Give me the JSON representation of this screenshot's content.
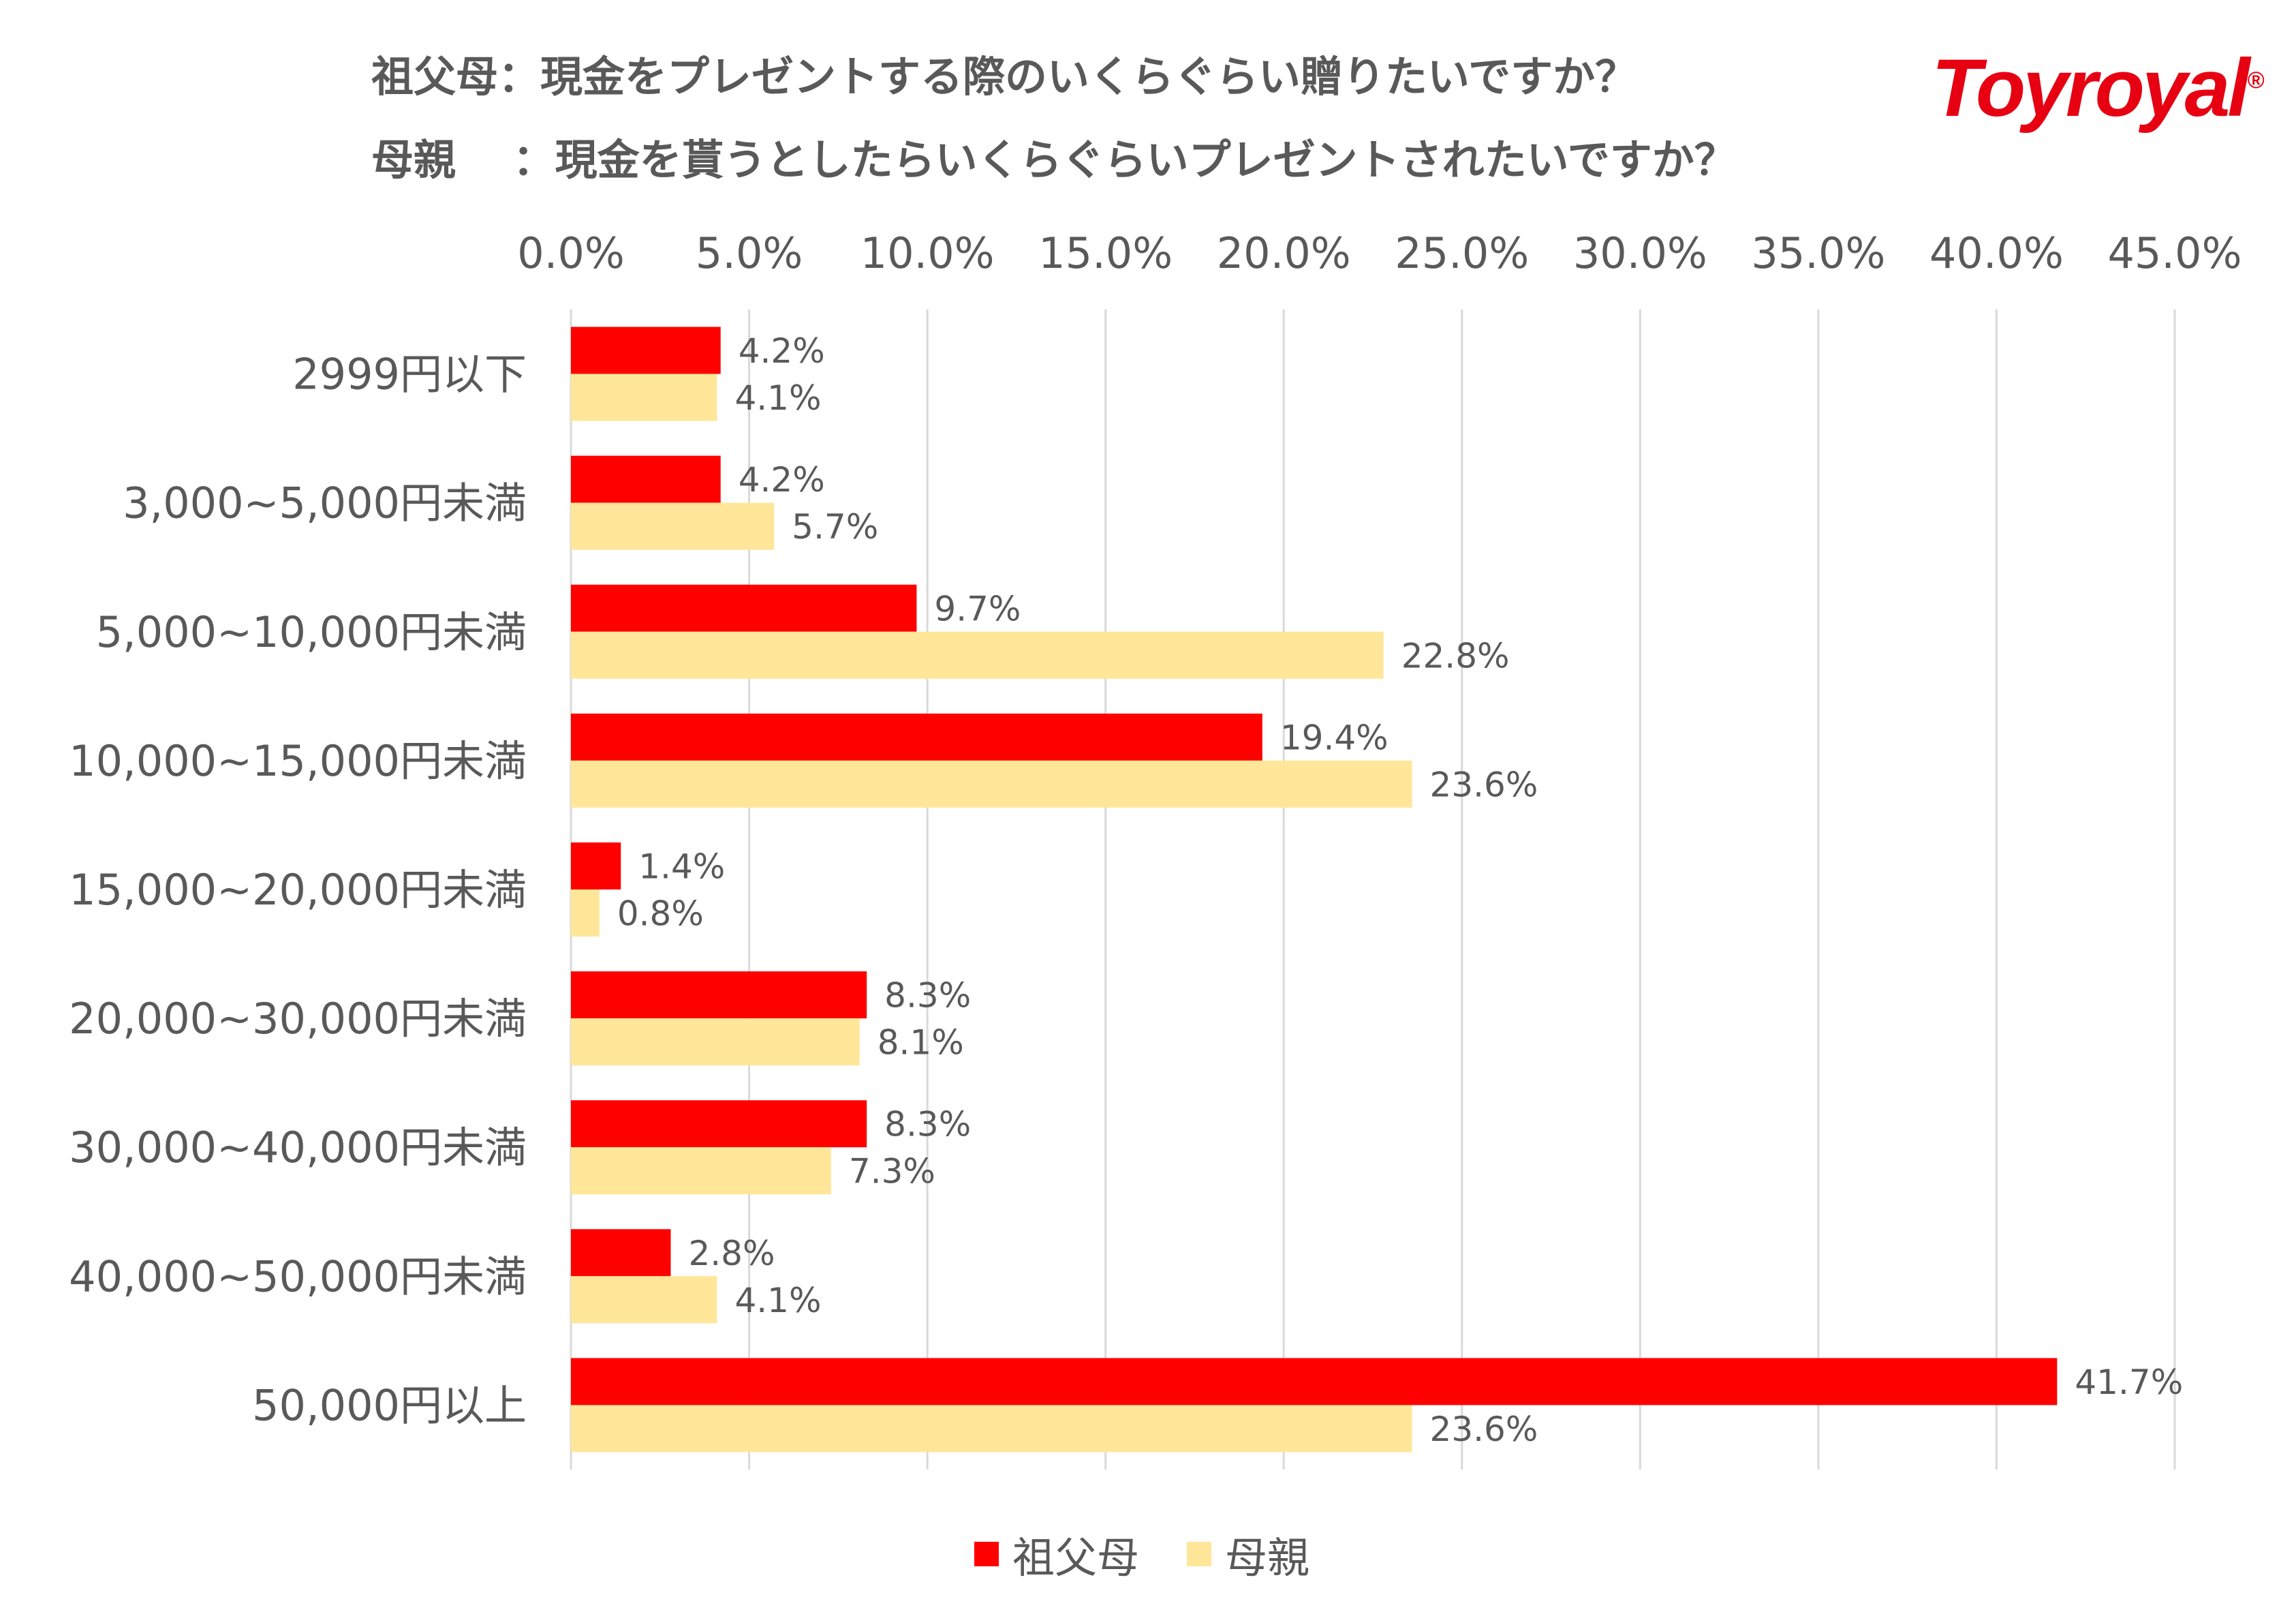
{
  "title_lines": [
    "祖父母：現金をプレゼントする際のいくらぐらい贈りたいですか？",
    "母親　 ：現金を貰うとしたらいくらぐらいプレゼントされたいですか？"
  ],
  "logo": "Toyroyal®",
  "chart_data": {
    "type": "bar",
    "orientation": "horizontal",
    "categories": [
      "2999円以下",
      "3,000~5,000円未満",
      "5,000~10,000円未満",
      "10,000~15,000円未満",
      "15,000~20,000円未満",
      "20,000~30,000円未満",
      "30,000~40,000円未満",
      "40,000~50,000円未満",
      "50,000円以上"
    ],
    "series": [
      {
        "name": "祖父母",
        "color": "#ff0000",
        "values": [
          4.2,
          4.2,
          9.7,
          19.4,
          1.4,
          8.3,
          8.3,
          2.8,
          41.7
        ]
      },
      {
        "name": "母親",
        "color": "#ffe699",
        "values": [
          4.1,
          5.7,
          22.8,
          23.6,
          0.8,
          8.1,
          7.3,
          4.1,
          23.6
        ]
      }
    ],
    "data_labels": [
      [
        "4.2%",
        "4.2%",
        "9.7%",
        "19.4%",
        "1.4%",
        "8.3%",
        "8.3%",
        "2.8%",
        "41.7%"
      ],
      [
        "4.1%",
        "5.7%",
        "22.8%",
        "23.6%",
        "0.8%",
        "8.1%",
        "7.3%",
        "4.1%",
        "23.6%"
      ]
    ],
    "xlim": [
      0,
      45
    ],
    "xticks": [
      "0.0%",
      "5.0%",
      "10.0%",
      "15.0%",
      "20.0%",
      "25.0%",
      "30.0%",
      "35.0%",
      "40.0%",
      "45.0%"
    ],
    "x_axis_position": "top",
    "grid": true,
    "legend_position": "bottom"
  }
}
